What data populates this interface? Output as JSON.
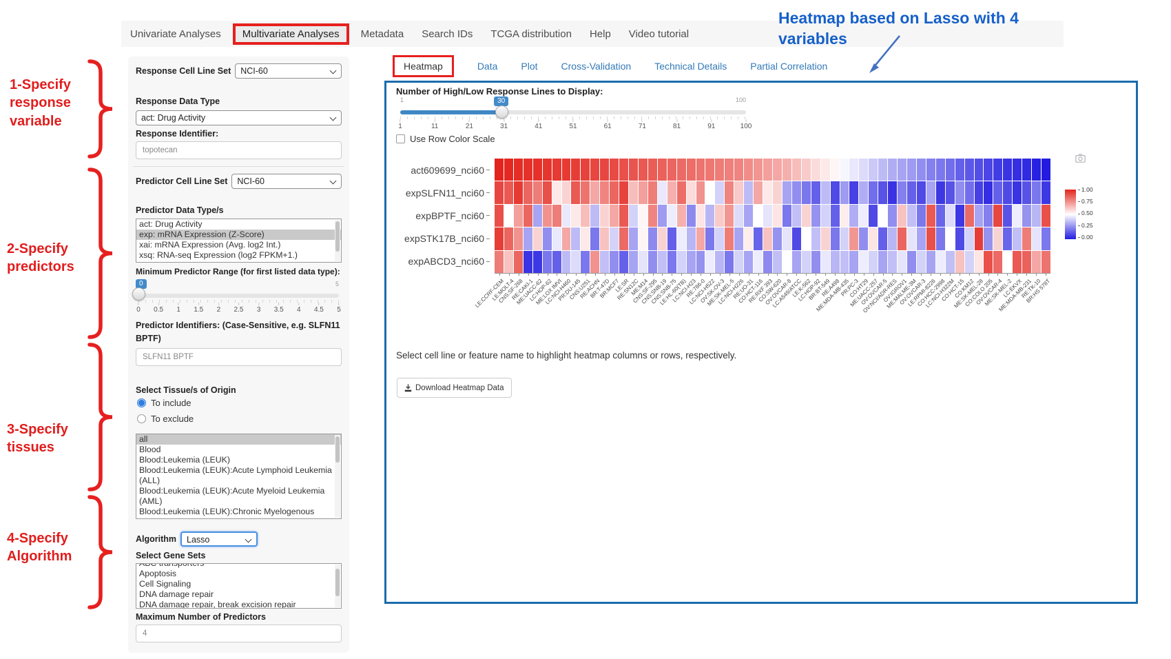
{
  "nav": {
    "items": [
      {
        "label": "Univariate Analyses",
        "active": false
      },
      {
        "label": "Multivariate Analyses",
        "active": true
      },
      {
        "label": "Metadata",
        "active": false
      },
      {
        "label": "Search IDs",
        "active": false
      },
      {
        "label": "TCGA distribution",
        "active": false
      },
      {
        "label": "Help",
        "active": false
      },
      {
        "label": "Video tutorial",
        "active": false
      }
    ]
  },
  "annotations": {
    "left": [
      {
        "label": "1-Specify\nresponse\nvariable"
      },
      {
        "label": "2-Specify\npredictors"
      },
      {
        "label": "3-Specify\ntissues"
      },
      {
        "label": "4-Specify\nAlgorithm"
      }
    ],
    "top_right": "Heatmap based on Lasso with 4 variables",
    "accent_red": "#e6201f",
    "accent_blue": "#1660c9"
  },
  "form": {
    "response_cell_line_set": {
      "label": "Response Cell Line Set",
      "value": "NCI-60"
    },
    "response_data_type": {
      "label": "Response Data Type",
      "value": "act: Drug Activity"
    },
    "response_identifier": {
      "label": "Response Identifier:",
      "value": "topotecan"
    },
    "predictor_cell_line_set": {
      "label": "Predictor Cell Line Set",
      "value": "NCI-60"
    },
    "predictor_data_types": {
      "label": "Predictor Data Type/s",
      "options": [
        "act: Drug Activity",
        "exp: mRNA Expression (Z-Score)",
        "xai: mRNA Expression (Avg. log2 Int.)",
        "xsq: RNA-seq Expression (log2 FPKM+1.)"
      ],
      "selected": "exp: mRNA Expression (Z-Score)"
    },
    "min_predictor_range": {
      "label": "Minimum Predictor Range (for first listed data type):",
      "value": "0",
      "min": "0",
      "max": "5",
      "ticks": [
        "0",
        "0.5",
        "1",
        "1.5",
        "2",
        "2.5",
        "3",
        "3.5",
        "4",
        "4.5",
        "5"
      ]
    },
    "predictor_identifiers": {
      "label": "Predictor Identifiers: (Case-Sensitive, e.g. SLFN11 BPTF)",
      "value": "SLFN11 BPTF"
    },
    "tissues": {
      "label": "Select Tissue/s of Origin",
      "radio_include": "To include",
      "radio_exclude": "To exclude",
      "include_selected": true,
      "options": [
        "all",
        "Blood",
        "Blood:Leukemia (LEUK)",
        "Blood:Leukemia (LEUK):Acute Lymphoid Leukemia (ALL)",
        "Blood:Leukemia (LEUK):Acute Myeloid Leukemia (AML)",
        "Blood:Leukemia (LEUK):Chronic Myelogenous Leukemia (CML)"
      ],
      "selected": "all"
    },
    "algorithm": {
      "label": "Algorithm",
      "value": "Lasso"
    },
    "gene_sets": {
      "label": "Select Gene Sets",
      "options": [
        "ABC transporters",
        "Apoptosis",
        "Cell Signaling",
        "DNA damage repair",
        "DNA damage repair, break excision repair"
      ]
    },
    "max_predictors": {
      "label": "Maximum Number of Predictors",
      "value": "4"
    }
  },
  "main": {
    "tabs": [
      {
        "label": "Heatmap",
        "active": true
      },
      {
        "label": "Data",
        "active": false
      },
      {
        "label": "Plot",
        "active": false
      },
      {
        "label": "Cross-Validation",
        "active": false
      },
      {
        "label": "Technical Details",
        "active": false
      },
      {
        "label": "Partial Correlation",
        "active": false
      }
    ]
  },
  "heatmap_panel": {
    "slider": {
      "label": "Number of High/Low Response Lines to Display:",
      "value": "30",
      "min": "1",
      "max": "100",
      "ticks": [
        "1",
        "11",
        "21",
        "31",
        "41",
        "51",
        "61",
        "71",
        "81",
        "91",
        "100"
      ]
    },
    "row_scale_label": "Use Row Color Scale",
    "note": "Select cell line or feature name to highlight heatmap columns or rows, respectively.",
    "download_button": "Download Heatmap Data",
    "colorbar_ticks": [
      "1.00",
      "0.75",
      "0.50",
      "0.25",
      "0.00"
    ]
  },
  "chart_data": {
    "type": "heatmap",
    "title": "",
    "rows": [
      "act609699_nci60",
      "expSLFN11_nci60",
      "expBPTF_nci60",
      "expSTK17B_nci60",
      "expABCD3_nci60"
    ],
    "columns": [
      "LE:CCRF-CEM",
      "LE:MOLT-4",
      "CNS:SF-268",
      "RE:CAKI-1",
      "ME:UACC-62",
      "LC:HOP-62",
      "ME:LOX IMVI",
      "LC:NCI-H460",
      "PR:DU-145",
      "CNS:U251",
      "RE:ACHN",
      "BR:T-47D",
      "BR:MCF7",
      "LE:SR",
      "RE:SN12C",
      "ME:M14",
      "CNS:SF-295",
      "CNS:SNB-19",
      "CNS:SNB-75",
      "LE:HL-60(TB)",
      "LC:NCI-H23",
      "RE:786-0",
      "LC:NCI-H522",
      "OV:SK-OV-3",
      "ME:SK-MEL-5",
      "LC:NCI-H226",
      "RE:UO-31",
      "CO:HCT-116",
      "RE:RXF 393",
      "CO:SW-620",
      "OV:OVCAR-8",
      "LC:A549/ATCC",
      "LE:K-562",
      "LC:HOP-92",
      "BR:BT-549",
      "RE:A498",
      "ME:MDA-MB-435",
      "PR:PC-3",
      "CO:HT29",
      "ME:UACC-257",
      "OV:OVCAR-5",
      "OV:NCI/ADR-RES",
      "OV:IGROV1",
      "ME:MALME-3M",
      "OV:OVCAR-3",
      "LE:RPMI-8226",
      "CO:HCC-2998",
      "LC:NCI-H322M",
      "CO:HCT-15",
      "CO:KM12",
      "ME:SK-MEL-28",
      "CO:COLO 205",
      "OV:OVCAR-4",
      "ME:SK-MEL-2",
      "LC:EKVX",
      "ME:MDA-MB-231",
      "RE:TK-10",
      "BR:HS 578T"
    ],
    "series": [
      {
        "name": "act609699_nci60",
        "values": [
          1.0,
          0.99,
          0.98,
          0.97,
          0.97,
          0.96,
          0.95,
          0.95,
          0.94,
          0.93,
          0.92,
          0.92,
          0.91,
          0.9,
          0.89,
          0.88,
          0.87,
          0.86,
          0.85,
          0.84,
          0.83,
          0.82,
          0.81,
          0.8,
          0.79,
          0.78,
          0.76,
          0.74,
          0.72,
          0.7,
          0.68,
          0.65,
          0.62,
          0.58,
          0.55,
          0.52,
          0.48,
          0.45,
          0.42,
          0.38,
          0.35,
          0.32,
          0.3,
          0.28,
          0.25,
          0.22,
          0.2,
          0.18,
          0.15,
          0.13,
          0.11,
          0.09,
          0.07,
          0.05,
          0.04,
          0.03,
          0.01,
          0.0
        ]
      },
      {
        "name": "expSLFN11_nci60",
        "values": [
          0.92,
          0.88,
          0.95,
          0.85,
          0.8,
          0.9,
          0.55,
          0.6,
          0.88,
          0.82,
          0.7,
          0.78,
          0.85,
          0.93,
          0.65,
          0.72,
          0.8,
          0.45,
          0.68,
          0.83,
          0.58,
          0.75,
          0.5,
          0.4,
          0.78,
          0.62,
          0.35,
          0.7,
          0.55,
          0.6,
          0.3,
          0.25,
          0.2,
          0.15,
          0.35,
          0.1,
          0.28,
          0.08,
          0.32,
          0.18,
          0.12,
          0.05,
          0.22,
          0.15,
          0.1,
          0.3,
          0.06,
          0.12,
          0.25,
          0.18,
          0.08,
          0.04,
          0.15,
          0.1,
          0.05,
          0.12,
          0.2,
          0.06
        ]
      },
      {
        "name": "expBPTF_nci60",
        "values": [
          0.9,
          0.5,
          0.72,
          0.85,
          0.3,
          0.75,
          0.8,
          0.45,
          0.55,
          0.65,
          0.35,
          0.6,
          0.7,
          0.88,
          0.4,
          0.52,
          0.78,
          0.28,
          0.46,
          0.68,
          0.24,
          0.56,
          0.34,
          0.62,
          0.74,
          0.42,
          0.3,
          0.5,
          0.44,
          0.56,
          0.2,
          0.36,
          0.6,
          0.26,
          0.4,
          0.15,
          0.54,
          0.32,
          0.46,
          0.1,
          0.5,
          0.25,
          0.64,
          0.36,
          0.2,
          0.88,
          0.16,
          0.42,
          0.06,
          0.84,
          0.3,
          0.22,
          0.92,
          0.12,
          0.46,
          0.26,
          0.34,
          0.9
        ]
      },
      {
        "name": "expSTK17B_nci60",
        "values": [
          0.94,
          0.85,
          0.75,
          0.3,
          0.6,
          0.25,
          0.45,
          0.7,
          0.35,
          0.55,
          0.2,
          0.64,
          0.4,
          0.84,
          0.3,
          0.52,
          0.24,
          0.6,
          0.15,
          0.46,
          0.34,
          0.7,
          0.2,
          0.4,
          0.8,
          0.3,
          0.54,
          0.16,
          0.64,
          0.26,
          0.44,
          0.1,
          0.5,
          0.36,
          0.6,
          0.2,
          0.4,
          0.74,
          0.25,
          0.56,
          0.15,
          0.34,
          0.85,
          0.44,
          0.3,
          0.9,
          0.2,
          0.5,
          0.1,
          0.4,
          0.94,
          0.26,
          0.6,
          0.16,
          0.36,
          0.8,
          0.44,
          0.2
        ]
      },
      {
        "name": "expABCD3_nci60",
        "values": [
          0.8,
          0.64,
          0.85,
          0.05,
          0.06,
          0.2,
          0.15,
          0.35,
          0.42,
          0.2,
          0.75,
          0.36,
          0.25,
          0.15,
          0.3,
          0.44,
          0.25,
          0.36,
          0.2,
          0.4,
          0.3,
          0.26,
          0.46,
          0.34,
          0.2,
          0.4,
          0.3,
          0.46,
          0.24,
          0.36,
          0.5,
          0.3,
          0.4,
          0.25,
          0.45,
          0.34,
          0.36,
          0.3,
          0.46,
          0.4,
          0.3,
          0.36,
          0.44,
          0.25,
          0.4,
          0.3,
          0.46,
          0.36,
          0.64,
          0.4,
          0.56,
          0.9,
          0.84,
          0.5,
          0.88,
          0.86,
          0.7,
          0.82
        ]
      }
    ],
    "colorscale": {
      "low": "#231ce0",
      "mid": "#ffffff",
      "high": "#e3241c",
      "domain": [
        0,
        1
      ],
      "legend_ticks": [
        1.0,
        0.75,
        0.5,
        0.25,
        0.0
      ]
    },
    "legend_position": "right"
  }
}
